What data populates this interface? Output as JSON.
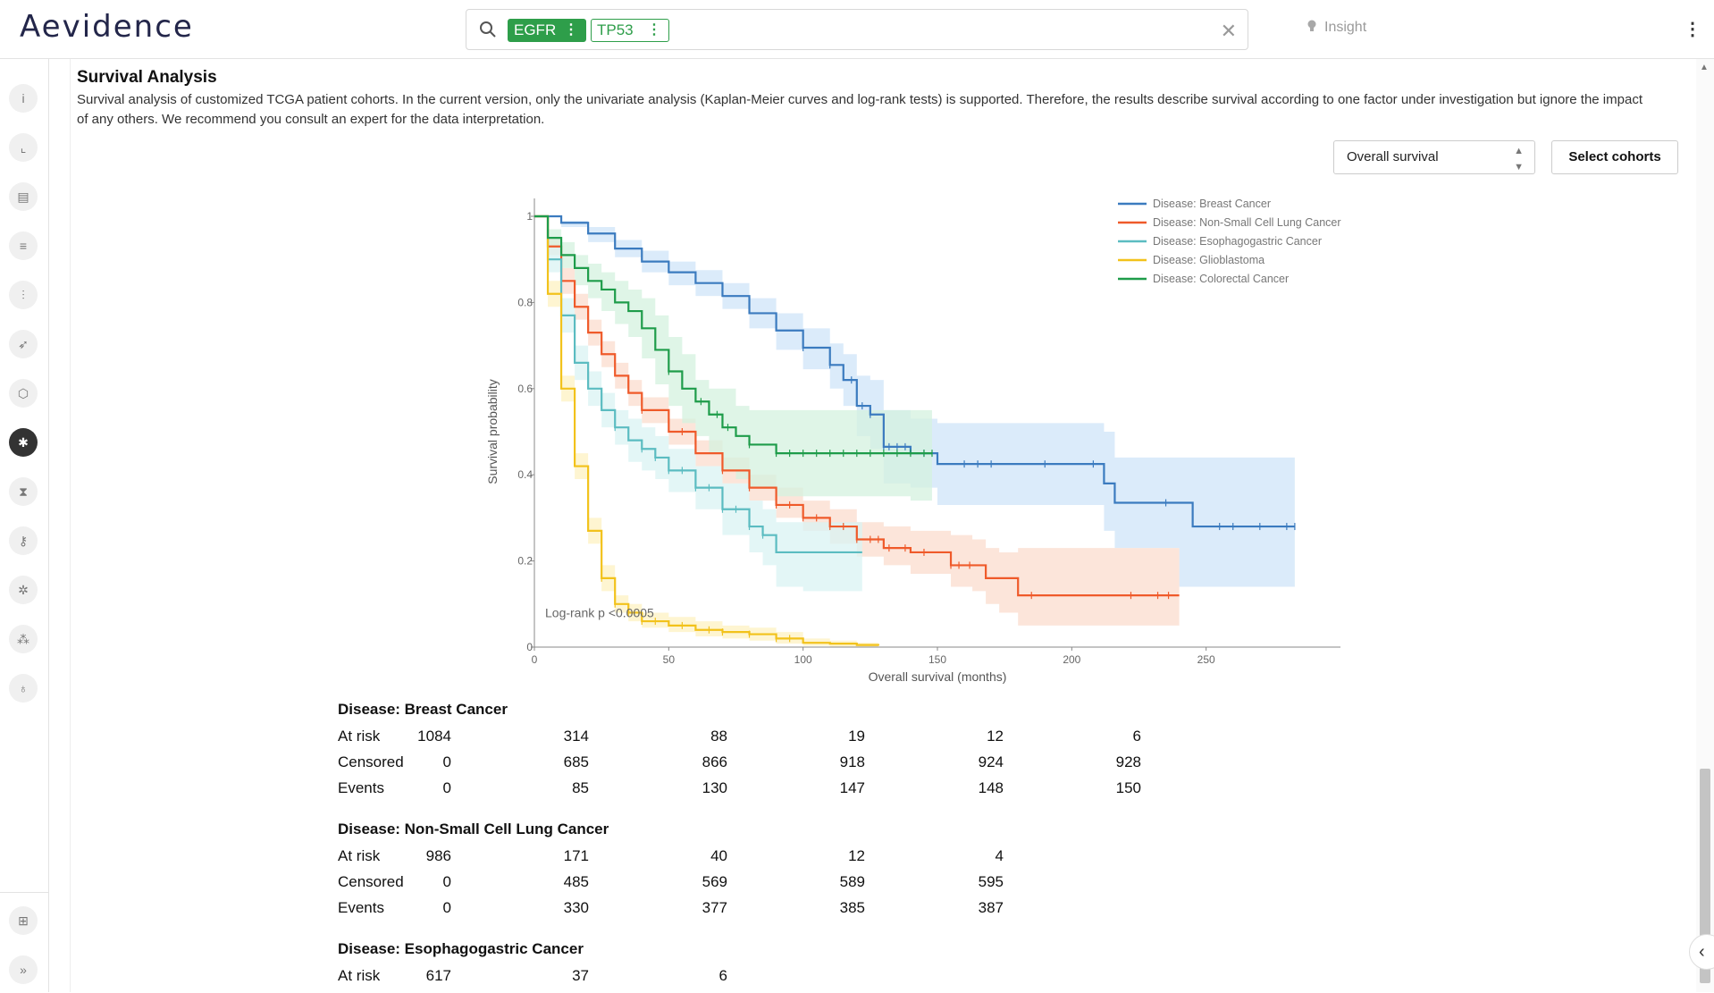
{
  "app": {
    "logo": "Aevidence"
  },
  "search": {
    "tags": [
      {
        "label": "EGFR",
        "style": "filled"
      },
      {
        "label": "TP53",
        "style": "outline"
      }
    ],
    "insight_label": "Insight"
  },
  "sidebar": {
    "items": [
      {
        "icon": "info-icon",
        "glyph": "i"
      },
      {
        "icon": "chart-icon",
        "glyph": "⌞"
      },
      {
        "icon": "book-icon",
        "glyph": "▤"
      },
      {
        "icon": "align-icon",
        "glyph": "≡"
      },
      {
        "icon": "sliders-icon",
        "glyph": "⫶"
      },
      {
        "icon": "rocket-icon",
        "glyph": "➶"
      },
      {
        "icon": "hexagon-icon",
        "glyph": "⬡"
      },
      {
        "icon": "puzzle-icon",
        "glyph": "✱",
        "active": true
      },
      {
        "icon": "hourglass-icon",
        "glyph": "⧗"
      },
      {
        "icon": "key-icon",
        "glyph": "⚷"
      },
      {
        "icon": "gear-icon",
        "glyph": "✲"
      },
      {
        "icon": "shapes-icon",
        "glyph": "⁂"
      },
      {
        "icon": "bulb-icon",
        "glyph": "♁"
      }
    ],
    "bottom": [
      {
        "icon": "grid-icon",
        "glyph": "⊞"
      },
      {
        "icon": "expand-icon",
        "glyph": "»"
      }
    ]
  },
  "section": {
    "title": "Survival Analysis",
    "description": "Survival analysis of customized TCGA patient cohorts. In the current version, only the univariate analysis (Kaplan-Meier curves and log-rank tests) is supported. Therefore, the results describe survival according to one factor under investigation but ignore the impact of any others. We recommend you consult an expert for the data interpretation.",
    "select_value": "Overall survival",
    "select_cohorts_label": "Select cohorts"
  },
  "chart_data": {
    "type": "line",
    "subtype": "kaplan-meier",
    "xlabel": "Overall survival (months)",
    "ylabel": "Survival probability",
    "xlim": [
      0,
      300
    ],
    "ylim": [
      0,
      1
    ],
    "xticks": [
      0,
      50,
      100,
      150,
      200,
      250
    ],
    "yticks": [
      0,
      0.2,
      0.4,
      0.6,
      0.8,
      1
    ],
    "ytick_labels": [
      "0",
      "0.2",
      "0.4",
      "0.6",
      "0.8",
      "1"
    ],
    "annotation": "Log-rank p <0.0005",
    "legend_position": "top-right",
    "series": [
      {
        "name": "Disease: Breast Cancer",
        "color": "#3b7bbf",
        "band": "#cfe4f8",
        "x": [
          0,
          10,
          20,
          30,
          40,
          50,
          60,
          70,
          80,
          90,
          100,
          110,
          115,
          120,
          125,
          130,
          140,
          150,
          160,
          180,
          200,
          212,
          216,
          225,
          240,
          245,
          260,
          283
        ],
        "y": [
          1.0,
          0.985,
          0.96,
          0.925,
          0.895,
          0.87,
          0.845,
          0.815,
          0.775,
          0.735,
          0.695,
          0.655,
          0.62,
          0.56,
          0.54,
          0.465,
          0.45,
          0.425,
          0.425,
          0.425,
          0.425,
          0.38,
          0.335,
          0.335,
          0.335,
          0.28,
          0.28,
          0.28
        ],
        "hi": [
          1.0,
          0.99,
          0.975,
          0.945,
          0.92,
          0.895,
          0.875,
          0.845,
          0.81,
          0.775,
          0.74,
          0.705,
          0.68,
          0.63,
          0.62,
          0.55,
          0.53,
          0.52,
          0.52,
          0.52,
          0.52,
          0.5,
          0.44,
          0.44,
          0.44,
          0.44,
          0.44,
          0.44
        ],
        "lo": [
          1.0,
          0.975,
          0.94,
          0.905,
          0.87,
          0.84,
          0.815,
          0.785,
          0.74,
          0.69,
          0.645,
          0.6,
          0.56,
          0.49,
          0.46,
          0.38,
          0.37,
          0.33,
          0.33,
          0.33,
          0.33,
          0.27,
          0.23,
          0.23,
          0.14,
          0.14,
          0.14,
          0.14
        ],
        "censor_x": [
          100,
          110,
          118,
          122,
          125,
          130,
          132,
          135,
          138,
          145,
          160,
          165,
          170,
          190,
          208,
          235,
          255,
          260,
          270,
          280,
          283
        ]
      },
      {
        "name": "Disease: Non-Small Cell Lung Cancer",
        "color": "#ef5a2a",
        "band": "#fbdccd",
        "x": [
          0,
          5,
          10,
          15,
          20,
          25,
          30,
          35,
          40,
          50,
          60,
          70,
          80,
          90,
          100,
          110,
          120,
          130,
          140,
          150,
          155,
          163,
          168,
          173,
          180,
          190,
          200,
          240
        ],
        "y": [
          1.0,
          0.93,
          0.85,
          0.79,
          0.73,
          0.68,
          0.63,
          0.59,
          0.55,
          0.5,
          0.45,
          0.41,
          0.37,
          0.33,
          0.3,
          0.28,
          0.25,
          0.23,
          0.22,
          0.22,
          0.19,
          0.19,
          0.16,
          0.16,
          0.12,
          0.12,
          0.12,
          0.12
        ],
        "hi": [
          1.0,
          0.95,
          0.88,
          0.82,
          0.76,
          0.71,
          0.66,
          0.62,
          0.58,
          0.53,
          0.48,
          0.44,
          0.4,
          0.37,
          0.34,
          0.32,
          0.29,
          0.28,
          0.27,
          0.27,
          0.26,
          0.25,
          0.23,
          0.22,
          0.23,
          0.23,
          0.23,
          0.23
        ],
        "lo": [
          1.0,
          0.91,
          0.82,
          0.76,
          0.7,
          0.65,
          0.6,
          0.56,
          0.52,
          0.47,
          0.42,
          0.38,
          0.34,
          0.3,
          0.27,
          0.24,
          0.21,
          0.19,
          0.17,
          0.17,
          0.14,
          0.13,
          0.1,
          0.08,
          0.05,
          0.05,
          0.05,
          0.05
        ],
        "censor_x": [
          40,
          55,
          70,
          80,
          90,
          95,
          100,
          105,
          110,
          115,
          120,
          125,
          128,
          132,
          138,
          145,
          155,
          158,
          162,
          185,
          222,
          232,
          236
        ]
      },
      {
        "name": "Disease: Esophagogastric Cancer",
        "color": "#5bbcc1",
        "band": "#d9f3f3",
        "x": [
          0,
          5,
          10,
          15,
          20,
          25,
          30,
          35,
          40,
          45,
          50,
          60,
          70,
          80,
          85,
          90,
          100,
          110,
          120,
          122
        ],
        "y": [
          1.0,
          0.9,
          0.77,
          0.66,
          0.6,
          0.55,
          0.51,
          0.48,
          0.46,
          0.44,
          0.41,
          0.37,
          0.32,
          0.28,
          0.26,
          0.22,
          0.22,
          0.22,
          0.22,
          0.22
        ],
        "hi": [
          1.0,
          0.93,
          0.81,
          0.7,
          0.64,
          0.59,
          0.55,
          0.53,
          0.51,
          0.49,
          0.46,
          0.42,
          0.38,
          0.34,
          0.32,
          0.29,
          0.29,
          0.29,
          0.29,
          0.29
        ],
        "lo": [
          1.0,
          0.87,
          0.73,
          0.62,
          0.56,
          0.51,
          0.47,
          0.43,
          0.41,
          0.39,
          0.36,
          0.32,
          0.26,
          0.22,
          0.19,
          0.14,
          0.13,
          0.13,
          0.13,
          0.13
        ],
        "censor_x": [
          30,
          40,
          45,
          50,
          55,
          60,
          65,
          70,
          75,
          80,
          85
        ]
      },
      {
        "name": "Disease: Glioblastoma",
        "color": "#f2c21b",
        "band": "#fdf1c2",
        "x": [
          0,
          5,
          10,
          15,
          20,
          25,
          30,
          35,
          40,
          50,
          60,
          70,
          80,
          90,
          100,
          110,
          120,
          128
        ],
        "y": [
          1.0,
          0.82,
          0.6,
          0.42,
          0.27,
          0.16,
          0.1,
          0.08,
          0.06,
          0.05,
          0.04,
          0.035,
          0.03,
          0.02,
          0.01,
          0.008,
          0.005,
          0.003
        ],
        "hi": [
          1.0,
          0.85,
          0.63,
          0.45,
          0.3,
          0.19,
          0.12,
          0.1,
          0.08,
          0.07,
          0.06,
          0.05,
          0.045,
          0.035,
          0.02,
          0.015,
          0.01,
          0.01
        ],
        "lo": [
          1.0,
          0.79,
          0.57,
          0.39,
          0.24,
          0.13,
          0.08,
          0.06,
          0.045,
          0.035,
          0.025,
          0.02,
          0.015,
          0.008,
          0.003,
          0.001,
          0.0,
          0.0
        ],
        "censor_x": [
          25,
          30,
          35,
          40,
          45,
          55,
          65,
          70,
          80,
          90,
          95
        ]
      },
      {
        "name": "Disease: Colorectal Cancer",
        "color": "#1e9c4a",
        "band": "#d4f2df",
        "x": [
          0,
          5,
          10,
          15,
          20,
          25,
          30,
          35,
          40,
          45,
          50,
          55,
          60,
          65,
          70,
          75,
          80,
          90,
          100,
          110,
          120,
          130,
          140,
          148
        ],
        "y": [
          1.0,
          0.95,
          0.91,
          0.88,
          0.85,
          0.83,
          0.8,
          0.78,
          0.74,
          0.69,
          0.64,
          0.6,
          0.57,
          0.54,
          0.51,
          0.49,
          0.47,
          0.45,
          0.45,
          0.45,
          0.45,
          0.45,
          0.45,
          0.45
        ],
        "hi": [
          1.0,
          0.97,
          0.94,
          0.91,
          0.89,
          0.87,
          0.85,
          0.83,
          0.81,
          0.77,
          0.72,
          0.68,
          0.62,
          0.6,
          0.6,
          0.56,
          0.55,
          0.55,
          0.55,
          0.55,
          0.55,
          0.55,
          0.55,
          0.55
        ],
        "lo": [
          1.0,
          0.93,
          0.88,
          0.84,
          0.81,
          0.78,
          0.75,
          0.72,
          0.67,
          0.61,
          0.56,
          0.52,
          0.49,
          0.45,
          0.41,
          0.39,
          0.37,
          0.35,
          0.35,
          0.35,
          0.35,
          0.35,
          0.34,
          0.34
        ],
        "censor_x": [
          50,
          62,
          68,
          72,
          80,
          90,
          95,
          100,
          105,
          110,
          115,
          120,
          125,
          130,
          135,
          140,
          145,
          148
        ]
      }
    ]
  },
  "risk_tables": [
    {
      "title": "Disease: Breast Cancer",
      "rows": [
        {
          "label": "At risk",
          "values": [
            "1084",
            "314",
            "88",
            "19",
            "12",
            "6"
          ]
        },
        {
          "label": "Censored",
          "values": [
            "0",
            "685",
            "866",
            "918",
            "924",
            "928"
          ]
        },
        {
          "label": "Events",
          "values": [
            "0",
            "85",
            "130",
            "147",
            "148",
            "150"
          ]
        }
      ]
    },
    {
      "title": "Disease: Non-Small Cell Lung Cancer",
      "rows": [
        {
          "label": "At risk",
          "values": [
            "986",
            "171",
            "40",
            "12",
            "4"
          ]
        },
        {
          "label": "Censored",
          "values": [
            "0",
            "485",
            "569",
            "589",
            "595"
          ]
        },
        {
          "label": "Events",
          "values": [
            "0",
            "330",
            "377",
            "385",
            "387"
          ]
        }
      ]
    },
    {
      "title": "Disease: Esophagogastric Cancer",
      "rows": [
        {
          "label": "At risk",
          "values": [
            "617",
            "37",
            "6"
          ]
        }
      ]
    }
  ]
}
